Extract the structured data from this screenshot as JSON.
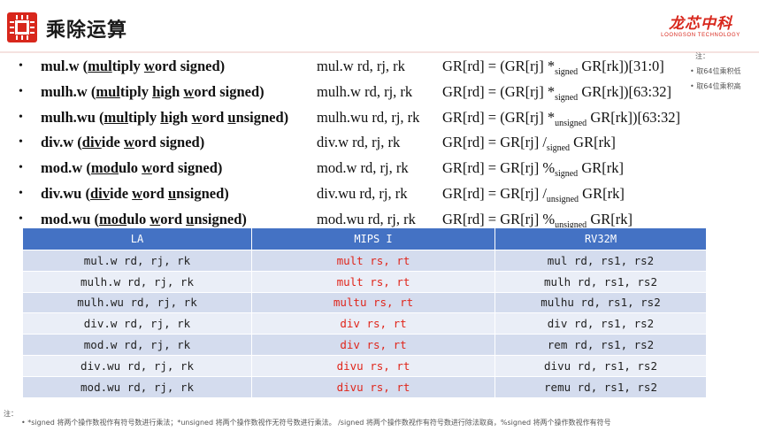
{
  "header": {
    "title": "乘除运算",
    "logo_cn": "龙芯中科",
    "logo_en": "LOONGSON TECHNOLOGY"
  },
  "side_note": {
    "label": "注：",
    "items": [
      "取64位乘积低",
      "取64位乘积高"
    ]
  },
  "instructions": [
    {
      "name_parts": [
        {
          "t": "mul.w ("
        },
        {
          "t": "mul",
          "u": true
        },
        {
          "t": "tiply "
        },
        {
          "t": "w",
          "u": true
        },
        {
          "t": "ord signed)"
        }
      ],
      "syntax": "mul.w rd, rj, rk",
      "sem": [
        {
          "t": "GR[rd] = (GR[rj] *"
        },
        {
          "sub": "signed"
        },
        {
          "t": " GR[rk])[31:0]"
        }
      ]
    },
    {
      "name_parts": [
        {
          "t": "mulh.w ("
        },
        {
          "t": "mul",
          "u": true
        },
        {
          "t": "tiply "
        },
        {
          "t": "h",
          "u": true
        },
        {
          "t": "igh "
        },
        {
          "t": "w",
          "u": true
        },
        {
          "t": "ord signed)"
        }
      ],
      "syntax": "mulh.w rd, rj, rk",
      "sem": [
        {
          "t": "GR[rd] = (GR[rj] *"
        },
        {
          "sub": "signed"
        },
        {
          "t": " GR[rk])[63:32]"
        }
      ]
    },
    {
      "name_parts": [
        {
          "t": "mulh.wu ("
        },
        {
          "t": "mul",
          "u": true
        },
        {
          "t": "tiply "
        },
        {
          "t": "h",
          "u": true
        },
        {
          "t": "igh "
        },
        {
          "t": "w",
          "u": true
        },
        {
          "t": "ord "
        },
        {
          "t": "u",
          "u": true
        },
        {
          "t": "nsigned)"
        }
      ],
      "syntax": "mulh.wu rd, rj, rk",
      "sem": [
        {
          "t": "GR[rd] = (GR[rj] *"
        },
        {
          "sub": "unsigned"
        },
        {
          "t": " GR[rk])[63:32]"
        }
      ]
    },
    {
      "name_parts": [
        {
          "t": "div.w ("
        },
        {
          "t": "div",
          "u": true
        },
        {
          "t": "ide "
        },
        {
          "t": "w",
          "u": true
        },
        {
          "t": "ord signed)"
        }
      ],
      "syntax": "div.w rd, rj, rk",
      "sem": [
        {
          "t": "GR[rd] = GR[rj] /"
        },
        {
          "sub": "signed"
        },
        {
          "t": " GR[rk]"
        }
      ]
    },
    {
      "name_parts": [
        {
          "t": "mod.w ("
        },
        {
          "t": "mod",
          "u": true
        },
        {
          "t": "ulo "
        },
        {
          "t": "w",
          "u": true
        },
        {
          "t": "ord signed)"
        }
      ],
      "syntax": "mod.w rd, rj, rk",
      "sem": [
        {
          "t": "GR[rd] = GR[rj] %"
        },
        {
          "sub": "signed"
        },
        {
          "t": " GR[rk]"
        }
      ]
    },
    {
      "name_parts": [
        {
          "t": "div.wu ("
        },
        {
          "t": "div",
          "u": true
        },
        {
          "t": "ide "
        },
        {
          "t": "w",
          "u": true
        },
        {
          "t": "ord "
        },
        {
          "t": "u",
          "u": true
        },
        {
          "t": "nsigned)"
        }
      ],
      "syntax": "div.wu rd, rj, rk",
      "sem": [
        {
          "t": "GR[rd] = GR[rj] /"
        },
        {
          "sub": "unsigned"
        },
        {
          "t": " GR[rk]"
        }
      ]
    },
    {
      "name_parts": [
        {
          "t": "mod.wu ("
        },
        {
          "t": "mod",
          "u": true
        },
        {
          "t": "ulo "
        },
        {
          "t": "w",
          "u": true
        },
        {
          "t": "ord "
        },
        {
          "t": "u",
          "u": true
        },
        {
          "t": "nsigned)"
        }
      ],
      "syntax": "mod.wu rd, rj, rk",
      "sem": [
        {
          "t": "GR[rd] = GR[rj] %"
        },
        {
          "sub": "unsigned"
        },
        {
          "t": " GR[rk]"
        }
      ]
    }
  ],
  "table": {
    "headers": [
      "LA",
      "MIPS I",
      "RV32M"
    ],
    "rows": [
      [
        "mul.w rd, rj, rk",
        "mult rs, rt",
        "mul rd, rs1, rs2"
      ],
      [
        "mulh.w rd, rj, rk",
        "mult rs, rt",
        "mulh rd, rs1, rs2"
      ],
      [
        "mulh.wu rd, rj, rk",
        "multu rs, rt",
        "mulhu rd, rs1, rs2"
      ],
      [
        "div.w rd, rj, rk",
        "div rs, rt",
        "div rd, rs1, rs2"
      ],
      [
        "mod.w rd, rj, rk",
        "div rs, rt",
        "rem rd, rs1, rs2"
      ],
      [
        "div.wu rd, rj, rk",
        "divu rs, rt",
        "divu rd, rs1, rs2"
      ],
      [
        "mod.wu rd, rj, rk",
        "divu rs, rt",
        "remu rd, rs1, rs2"
      ]
    ]
  },
  "footnote": {
    "label": "注：",
    "text": "• *signed 将两个操作数视作有符号数进行乘法；*unsigned 将两个操作数视作无符号数进行乘法。 /signed 将两个操作数视作有符号数进行除法取商，%signed 将两个操作数视作有符号"
  },
  "colors": {
    "accent_red": "#d8271c",
    "table_header": "#4472c4",
    "mips_text": "#e0261b"
  }
}
